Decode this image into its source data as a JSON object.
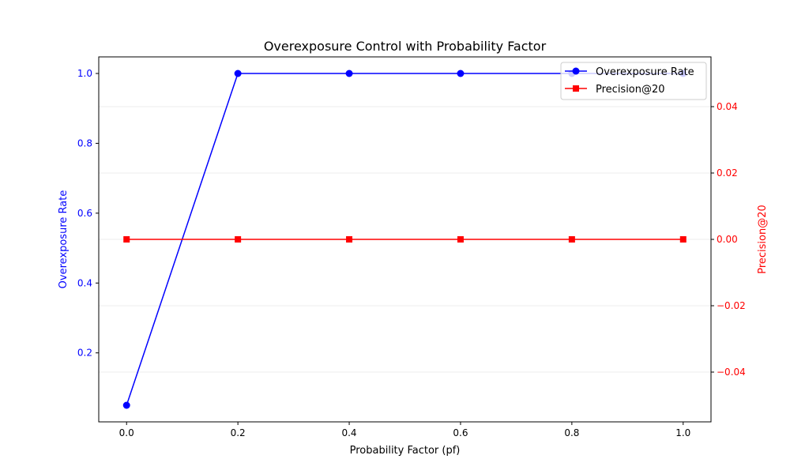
{
  "chart_data": {
    "type": "line",
    "title": "Overexposure Control with Probability Factor",
    "xlabel": "Probability Factor (pf)",
    "ylabel_left": "Overexposure Rate",
    "ylabel_right": "Precision@20",
    "x": [
      0.0,
      0.2,
      0.4,
      0.6,
      0.8,
      1.0
    ],
    "xlim": [
      -0.05,
      1.05
    ],
    "x_ticks": [
      0.0,
      0.2,
      0.4,
      0.6,
      0.8,
      1.0
    ],
    "x_tick_labels": [
      "0.0",
      "0.2",
      "0.4",
      "0.6",
      "0.8",
      "1.0"
    ],
    "ylim_left": [
      0.0025,
      1.0475
    ],
    "y_left_ticks": [
      0.2,
      0.4,
      0.6,
      0.8,
      1.0
    ],
    "y_left_tick_labels": [
      "0.2",
      "0.4",
      "0.6",
      "0.8",
      "1.0"
    ],
    "ylim_right": [
      -0.055,
      0.055
    ],
    "y_right_ticks": [
      -0.04,
      -0.02,
      0.0,
      0.02,
      0.04
    ],
    "y_right_tick_labels": [
      "−0.04",
      "−0.02",
      "0.00",
      "0.02",
      "0.04"
    ],
    "grid": "horizontal, right axis",
    "legend_position": "top-right",
    "series": [
      {
        "name": "Overexposure Rate",
        "axis": "left",
        "color": "#0000ff",
        "marker": "circle",
        "values": [
          0.05,
          1.0,
          1.0,
          1.0,
          1.0,
          1.0
        ]
      },
      {
        "name": "Precision@20",
        "axis": "right",
        "color": "#ff0000",
        "marker": "square",
        "values": [
          0.0,
          0.0,
          0.0,
          0.0,
          0.0,
          0.0
        ]
      }
    ],
    "colors": {
      "left_axis": "#0000ff",
      "right_axis": "#ff0000",
      "text": "#000000",
      "grid": "#e6e6e6"
    }
  }
}
